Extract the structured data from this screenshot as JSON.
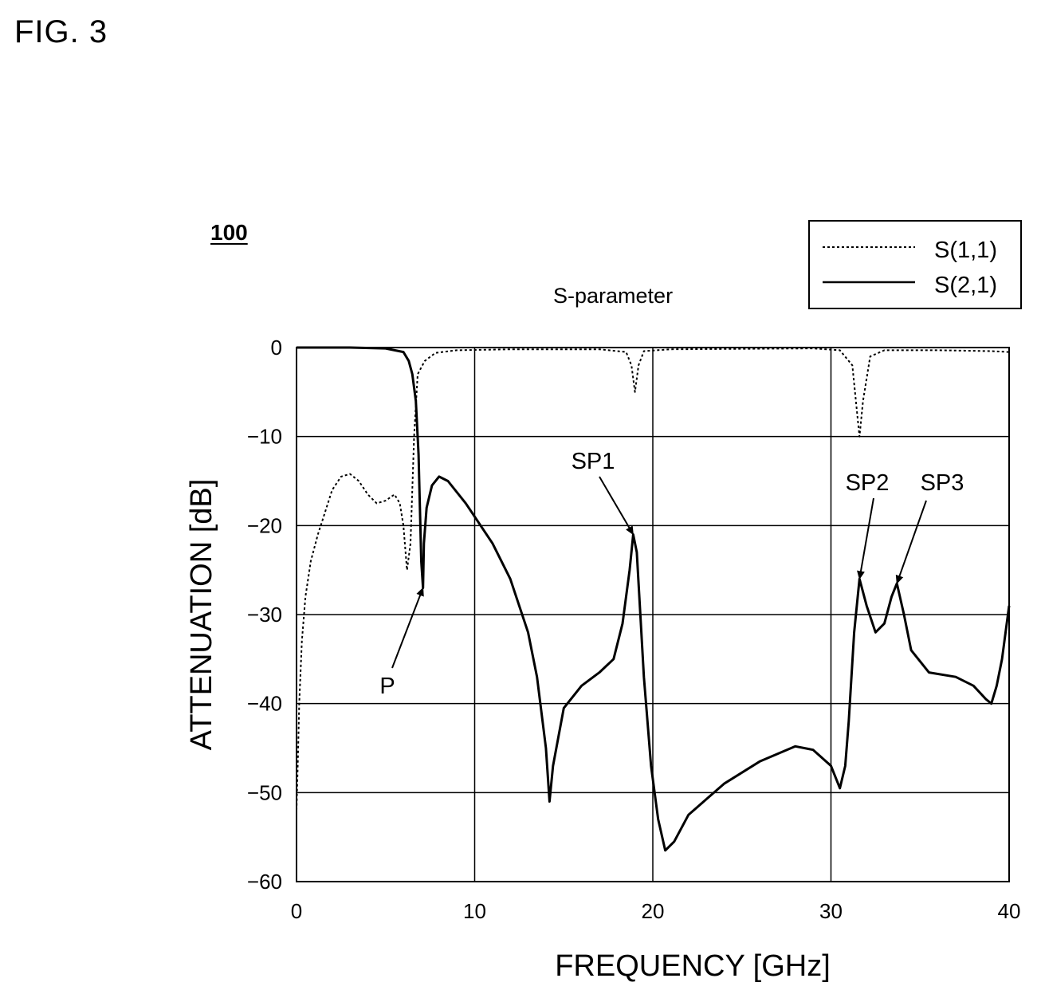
{
  "figure_label": "FIG. 3",
  "reference_number": "100",
  "chart_data": {
    "type": "line",
    "title": "S-parameter",
    "xlabel": "FREQUENCY [GHz]",
    "ylabel": "ATTENUATION [dB]",
    "xlim": [
      0,
      40
    ],
    "ylim": [
      -60,
      0
    ],
    "x_ticks": [
      0,
      10,
      20,
      30,
      40
    ],
    "y_ticks": [
      0,
      -10,
      -20,
      -30,
      -40,
      -50,
      -60
    ],
    "grid": true,
    "legend_position": "top-right",
    "series": [
      {
        "name": "S(1,1)",
        "style": "dotted",
        "color": "#000000",
        "points": [
          [
            0,
            -52
          ],
          [
            0.08,
            -46
          ],
          [
            0.15,
            -40
          ],
          [
            0.3,
            -33
          ],
          [
            0.5,
            -28
          ],
          [
            0.8,
            -24
          ],
          [
            1.2,
            -21
          ],
          [
            1.6,
            -18.5
          ],
          [
            2.0,
            -16
          ],
          [
            2.5,
            -14.5
          ],
          [
            3.0,
            -14.2
          ],
          [
            3.5,
            -15
          ],
          [
            4.0,
            -16.5
          ],
          [
            4.5,
            -17.5
          ],
          [
            5.0,
            -17.2
          ],
          [
            5.5,
            -16.5
          ],
          [
            5.8,
            -17.5
          ],
          [
            6.0,
            -20
          ],
          [
            6.2,
            -25
          ],
          [
            6.4,
            -22
          ],
          [
            6.6,
            -10
          ],
          [
            6.8,
            -3
          ],
          [
            7.2,
            -1.5
          ],
          [
            7.8,
            -0.6
          ],
          [
            9,
            -0.3
          ],
          [
            12,
            -0.2
          ],
          [
            17,
            -0.2
          ],
          [
            18.5,
            -0.5
          ],
          [
            18.8,
            -2
          ],
          [
            19.0,
            -5
          ],
          [
            19.2,
            -2
          ],
          [
            19.5,
            -0.4
          ],
          [
            21,
            -0.2
          ],
          [
            29,
            -0.1
          ],
          [
            30.5,
            -0.3
          ],
          [
            31.2,
            -2
          ],
          [
            31.5,
            -8
          ],
          [
            31.6,
            -10
          ],
          [
            31.8,
            -6
          ],
          [
            32.2,
            -1
          ],
          [
            33,
            -0.3
          ],
          [
            36,
            -0.3
          ],
          [
            39,
            -0.4
          ],
          [
            40,
            -0.5
          ]
        ]
      },
      {
        "name": "S(2,1)",
        "style": "solid",
        "color": "#000000",
        "points": [
          [
            0,
            0
          ],
          [
            3,
            0
          ],
          [
            5,
            -0.1
          ],
          [
            6,
            -0.5
          ],
          [
            6.3,
            -1.5
          ],
          [
            6.5,
            -3
          ],
          [
            6.7,
            -6
          ],
          [
            6.85,
            -12
          ],
          [
            7.0,
            -24
          ],
          [
            7.1,
            -27
          ],
          [
            7.15,
            -22
          ],
          [
            7.3,
            -18
          ],
          [
            7.6,
            -15.5
          ],
          [
            8.0,
            -14.5
          ],
          [
            8.5,
            -15
          ],
          [
            9.5,
            -17.5
          ],
          [
            11,
            -22
          ],
          [
            12,
            -26
          ],
          [
            13,
            -32
          ],
          [
            13.5,
            -37
          ],
          [
            14.0,
            -45
          ],
          [
            14.2,
            -51
          ],
          [
            14.4,
            -47
          ],
          [
            15,
            -40.5
          ],
          [
            16,
            -38
          ],
          [
            17,
            -36.5
          ],
          [
            17.8,
            -35
          ],
          [
            18.3,
            -31
          ],
          [
            18.7,
            -25
          ],
          [
            18.9,
            -21
          ],
          [
            19.1,
            -23
          ],
          [
            19.5,
            -37
          ],
          [
            19.9,
            -47
          ],
          [
            20.3,
            -53
          ],
          [
            20.7,
            -56.5
          ],
          [
            21.2,
            -55.5
          ],
          [
            22,
            -52.5
          ],
          [
            24,
            -49
          ],
          [
            26,
            -46.5
          ],
          [
            28,
            -44.8
          ],
          [
            29,
            -45.2
          ],
          [
            30,
            -47
          ],
          [
            30.5,
            -49.5
          ],
          [
            30.8,
            -47
          ],
          [
            31.0,
            -42
          ],
          [
            31.3,
            -32
          ],
          [
            31.6,
            -26
          ],
          [
            32.0,
            -29
          ],
          [
            32.5,
            -32
          ],
          [
            33.0,
            -31
          ],
          [
            33.4,
            -28
          ],
          [
            33.7,
            -26.5
          ],
          [
            34.1,
            -30
          ],
          [
            34.5,
            -34
          ],
          [
            35.5,
            -36.5
          ],
          [
            37,
            -37
          ],
          [
            38,
            -38
          ],
          [
            38.7,
            -39.5
          ],
          [
            39.0,
            -40
          ],
          [
            39.3,
            -38
          ],
          [
            39.6,
            -35
          ],
          [
            40,
            -29
          ]
        ]
      }
    ],
    "annotations": [
      {
        "text": "P",
        "target": [
          7.1,
          -27
        ]
      },
      {
        "text": "SP1",
        "target": [
          18.9,
          -21
        ]
      },
      {
        "text": "SP2",
        "target": [
          31.6,
          -26
        ]
      },
      {
        "text": "SP3",
        "target": [
          33.7,
          -26.5
        ]
      }
    ]
  }
}
